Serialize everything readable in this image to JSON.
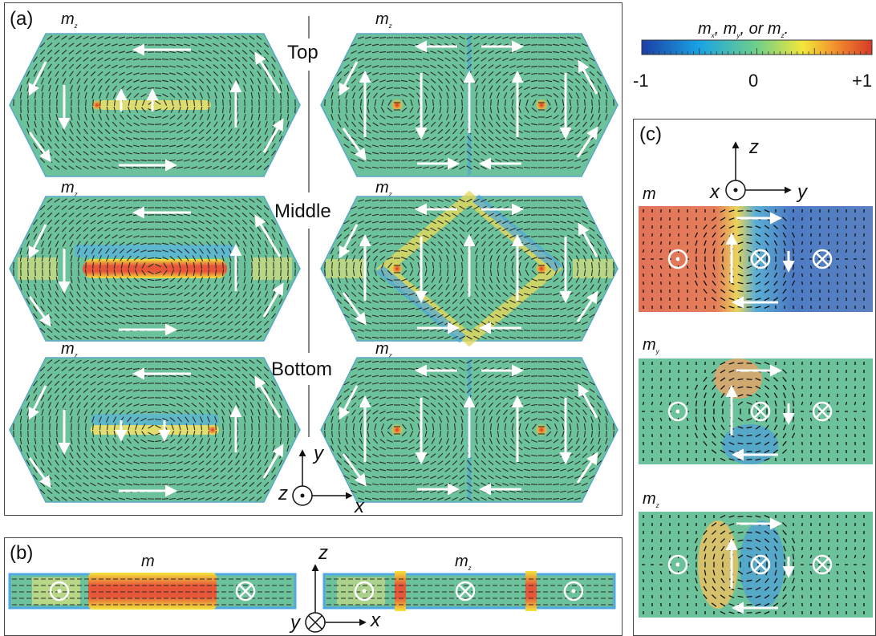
{
  "panels": {
    "a_label": "(a)",
    "b_label": "(b)",
    "c_label": "(c)"
  },
  "rows": {
    "top": "Top",
    "middle": "Middle",
    "bottom": "Bottom"
  },
  "comp_labels": {
    "mz": "m",
    "mz_sub": "z",
    "my": "m",
    "my_sub": "y",
    "m_plain": "m"
  },
  "colorbar": {
    "title_parts": [
      "m",
      "x",
      ", m",
      "y",
      ", or m",
      "z",
      "."
    ],
    "ticks": [
      "-1",
      "0",
      "+1"
    ],
    "colors": [
      "#1a3fa8",
      "#1fa0e0",
      "#6ccf8a",
      "#f2e53a",
      "#f07d2a",
      "#d83a2a"
    ]
  },
  "axes": {
    "a": {
      "y": "y",
      "z": "z",
      "x": "x"
    },
    "b": {
      "z": "z",
      "y": "y",
      "x": "x"
    },
    "c": {
      "z": "z",
      "x": "x",
      "y": "y"
    }
  },
  "colors": {
    "green": "#6cc29a",
    "arrow": "#ffffff",
    "frame": "#444444"
  }
}
